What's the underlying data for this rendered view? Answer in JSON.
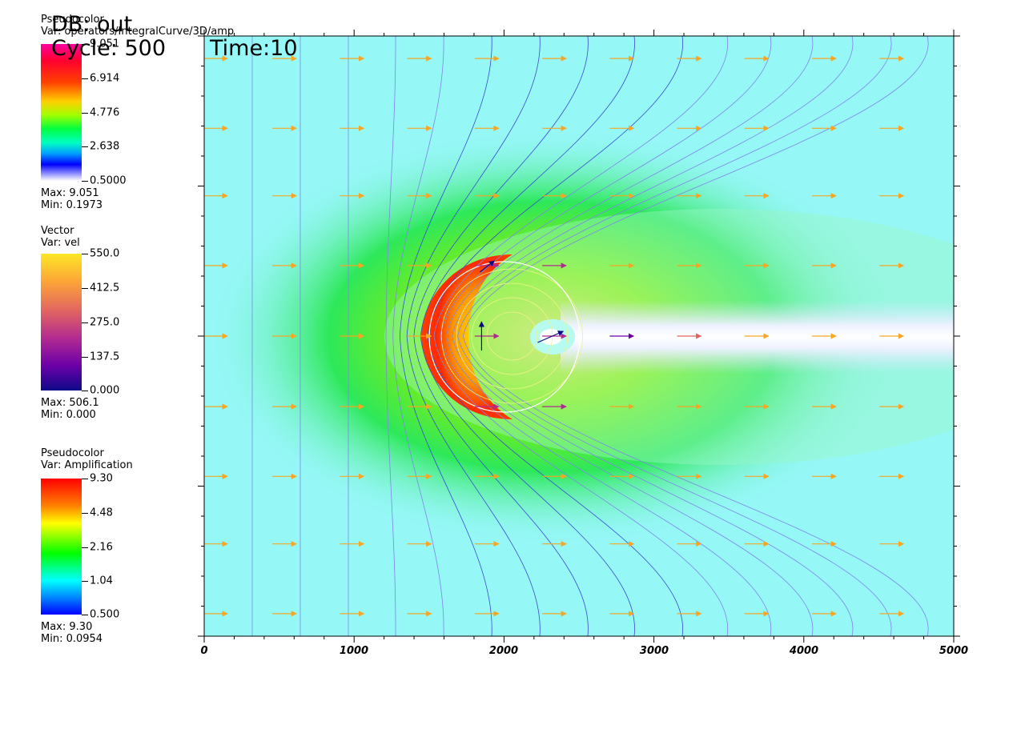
{
  "header": {
    "db_label": "DB: out",
    "cycle_label": "Cycle: 500",
    "time_label": "Time:10"
  },
  "legends": [
    {
      "kind": "Pseudocolor",
      "var": "Var: operators/IntegralCurve/3D/amp",
      "ticks": [
        "9.051",
        "6.914",
        "4.776",
        "2.638",
        "0.5000"
      ],
      "max": "Max: 9.051",
      "min": "Min: 0.1973",
      "palette": "hot_rainbow"
    },
    {
      "kind": "Vector",
      "var": "Var: vel",
      "ticks": [
        "550.0",
        "412.5",
        "275.0",
        "137.5",
        "0.000"
      ],
      "max": "Max: 506.1",
      "min": "Min: 0.000",
      "palette": "plasma"
    },
    {
      "kind": "Pseudocolor",
      "var": "Var: Amplification",
      "ticks": [
        "9.30",
        "4.48",
        "2.16",
        "1.04",
        "0.500"
      ],
      "max": "Max: 9.30",
      "min": "Min: 0.0954",
      "palette": "rainbow"
    }
  ],
  "colors": {
    "background_field": "#95f7f6",
    "wake": "#ffffff",
    "streamline": "#5a66e0",
    "vector_fast": "#f5a623",
    "circle": "#ffffff"
  },
  "chart_data": {
    "type": "heatmap",
    "x_ticks": [
      "0",
      "1000",
      "2000",
      "3000",
      "4000",
      "5000"
    ],
    "xlim": [
      0,
      5000
    ],
    "ylim": [
      -2000,
      2000
    ],
    "obstacle": {
      "cx": 2000,
      "cy": 0,
      "r": 500
    },
    "wake": {
      "x_start": 2700,
      "x_end": 5000,
      "half_width": 100
    },
    "vector_grid": {
      "x": [
        75,
        535,
        985,
        1435,
        1885,
        2335,
        2785,
        3235,
        3685,
        4135,
        4585
      ],
      "y": [
        1850,
        1385,
        935,
        470,
        0,
        -470,
        -935,
        -1385,
        -1850
      ],
      "magnitude": 506.1
    }
  }
}
